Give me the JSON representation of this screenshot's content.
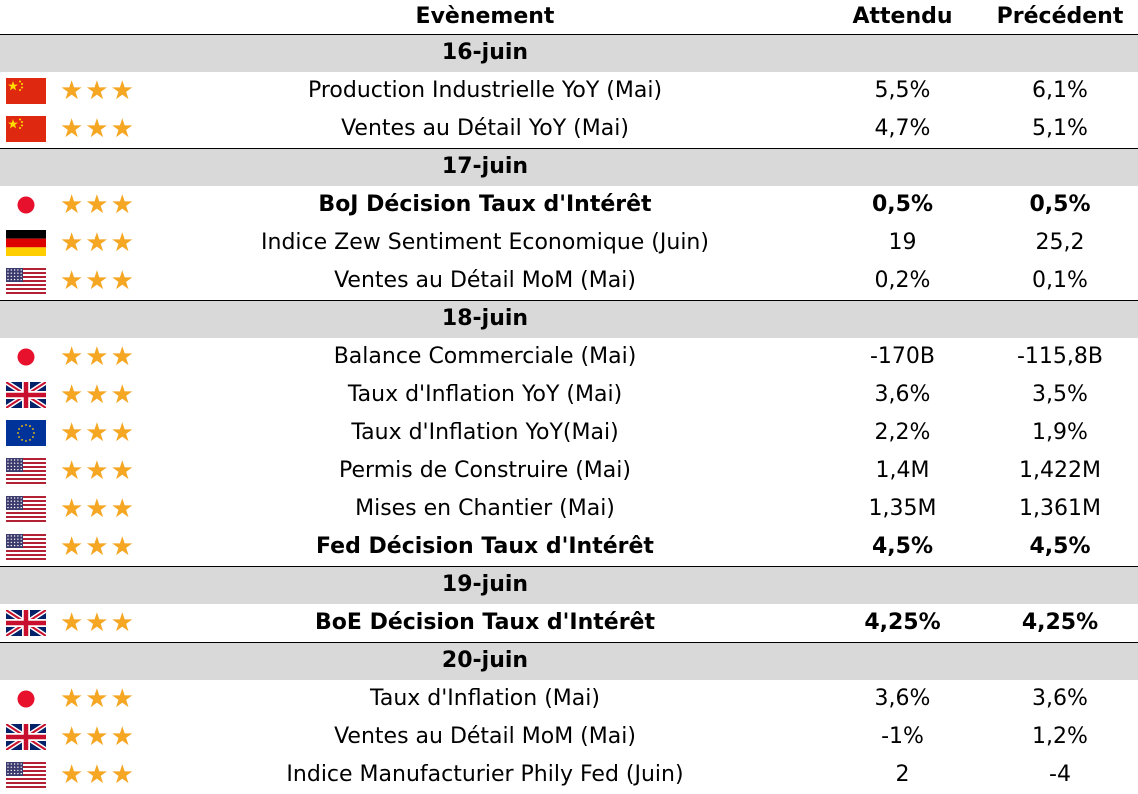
{
  "header": {
    "event": "Evènement",
    "expected": "Attendu",
    "previous": "Précédent"
  },
  "groups": [
    {
      "date": "16-juin",
      "rows": [
        {
          "flag": "china-flag-icon",
          "stars": "★★★",
          "event": "Production Industrielle YoY (Mai)",
          "expected": "5,5%",
          "previous": "6,1%",
          "bold": false
        },
        {
          "flag": "china-flag-icon",
          "stars": "★★★",
          "event": "Ventes au Détail YoY (Mai)",
          "expected": "4,7%",
          "previous": "5,1%",
          "bold": false
        }
      ]
    },
    {
      "date": "17-juin",
      "rows": [
        {
          "flag": "japan-flag-icon",
          "stars": "★★★",
          "event": "BoJ Décision Taux d'Intérêt",
          "expected": "0,5%",
          "previous": "0,5%",
          "bold": true
        },
        {
          "flag": "germany-flag-icon",
          "stars": "★★★",
          "event": "Indice Zew Sentiment Economique (Juin)",
          "expected": "19",
          "previous": "25,2",
          "bold": false
        },
        {
          "flag": "usa-flag-icon",
          "stars": "★★★",
          "event": "Ventes au Détail MoM (Mai)",
          "expected": "0,2%",
          "previous": "0,1%",
          "bold": false
        }
      ]
    },
    {
      "date": "18-juin",
      "rows": [
        {
          "flag": "japan-flag-icon",
          "stars": "★★★",
          "event": "Balance Commerciale (Mai)",
          "expected": "-170B",
          "previous": "-115,8B",
          "bold": false
        },
        {
          "flag": "uk-flag-icon",
          "stars": "★★★",
          "event": "Taux d'Inflation YoY (Mai)",
          "expected": "3,6%",
          "previous": "3,5%",
          "bold": false
        },
        {
          "flag": "eu-flag-icon",
          "stars": "★★★",
          "event": "Taux d'Inflation YoY(Mai)",
          "expected": "2,2%",
          "previous": "1,9%",
          "bold": false
        },
        {
          "flag": "usa-flag-icon",
          "stars": "★★★",
          "event": "Permis de Construire (Mai)",
          "expected": "1,4M",
          "previous": "1,422M",
          "bold": false
        },
        {
          "flag": "usa-flag-icon",
          "stars": "★★★",
          "event": "Mises en Chantier (Mai)",
          "expected": "1,35M",
          "previous": "1,361M",
          "bold": false
        },
        {
          "flag": "usa-flag-icon",
          "stars": "★★★",
          "event": "Fed Décision Taux d'Intérêt",
          "expected": "4,5%",
          "previous": "4,5%",
          "bold": true
        }
      ]
    },
    {
      "date": "19-juin",
      "rows": [
        {
          "flag": "uk-flag-icon",
          "stars": "★★★",
          "event": "BoE Décision Taux d'Intérêt",
          "expected": "4,25%",
          "previous": "4,25%",
          "bold": true
        }
      ]
    },
    {
      "date": "20-juin",
      "rows": [
        {
          "flag": "japan-flag-icon",
          "stars": "★★★",
          "event": "Taux d'Inflation (Mai)",
          "expected": "3,6%",
          "previous": "3,6%",
          "bold": false
        },
        {
          "flag": "uk-flag-icon",
          "stars": "★★★",
          "event": "Ventes au Détail MoM (Mai)",
          "expected": "-1%",
          "previous": "1,2%",
          "bold": false
        },
        {
          "flag": "usa-flag-icon",
          "stars": "★★★",
          "event": "Indice Manufacturier Phily Fed (Juin)",
          "expected": "2",
          "previous": "-4",
          "bold": false
        }
      ]
    }
  ]
}
